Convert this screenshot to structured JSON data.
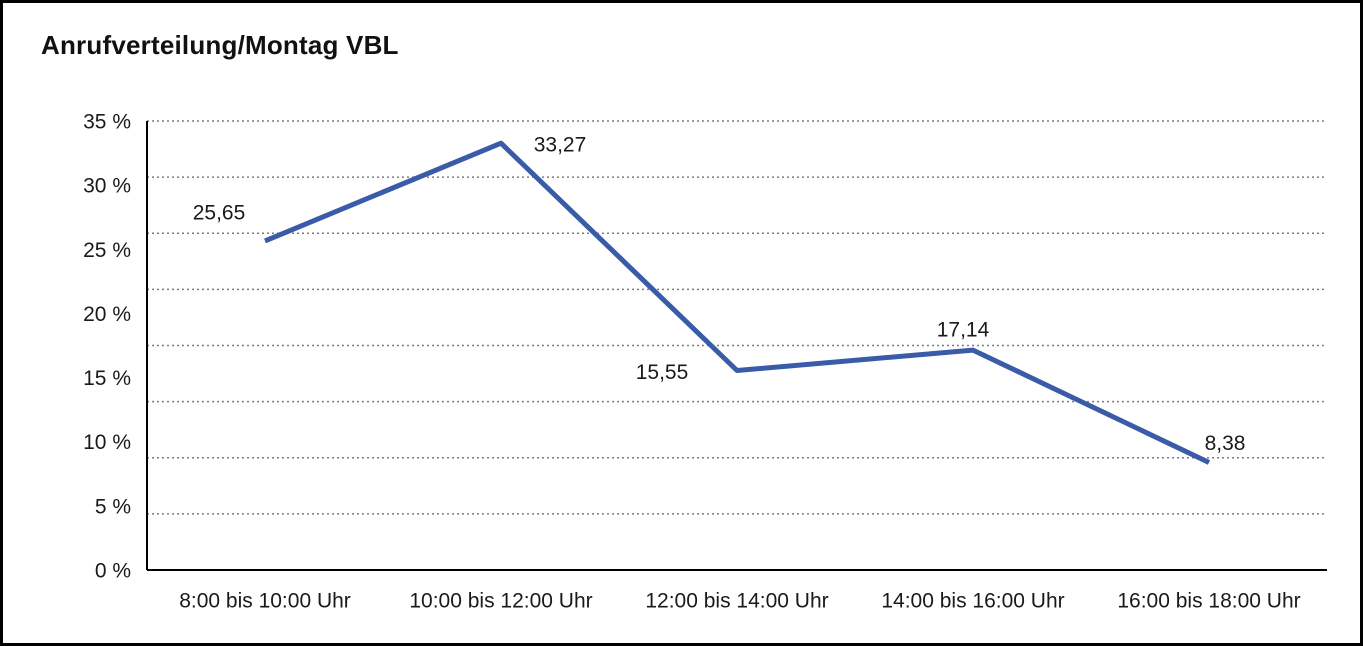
{
  "window": {
    "title": "Anrufverteilung/Montag VBL"
  },
  "chart_data": {
    "type": "line",
    "title": "Anrufverteilung/Montag VBL",
    "categories": [
      "8:00 bis 10:00 Uhr",
      "10:00 bis 12:00 Uhr",
      "12:00 bis 14:00 Uhr",
      "14:00 bis 16:00 Uhr",
      "16:00 bis 18:00 Uhr"
    ],
    "values": [
      25.65,
      33.27,
      15.55,
      17.14,
      8.38
    ],
    "value_labels": [
      "25,65",
      "33,27",
      "15,55",
      "17,14",
      "8,38"
    ],
    "y_tick_labels": [
      "35 %",
      "30 %",
      "25 %",
      "20 %",
      "15 %",
      "10 %",
      "5 %",
      "0 %"
    ],
    "ylabel": "",
    "xlabel": "",
    "ylim": [
      0,
      35
    ],
    "y_tick_step_percent": 5,
    "grid": "horizontal-dotted",
    "gridline_count": 8,
    "legend": "none",
    "colors": {
      "line": "#3A5BA8",
      "grid": "#7d7d7d",
      "axis": "#000000",
      "text": "#1a1a1a",
      "background": "#ffffff",
      "frame_border": "#000000"
    }
  }
}
